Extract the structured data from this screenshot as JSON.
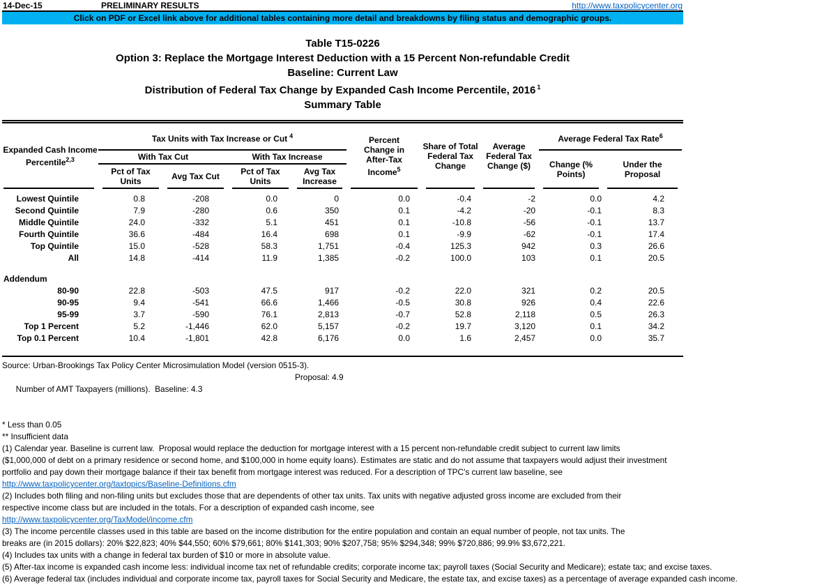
{
  "colors": {
    "banner": "#00B0F0",
    "link": "#0563C1",
    "text": "#000000"
  },
  "header": {
    "date": "14-Dec-15",
    "status": "PRELIMINARY RESULTS",
    "site_url": "http://www.taxpolicycenter.org",
    "banner_text": "Click on PDF or Excel link above for additional tables containing more detail and breakdowns by filing status and demographic groups."
  },
  "title": {
    "table_id": "Table T15-0226",
    "option": "Option 3: Replace the Mortgage Interest Deduction with a 15 Percent Non-refundable Credit",
    "baseline": "Baseline: Current Law",
    "distribution": "Distribution of Federal Tax Change by Expanded Cash Income Percentile, 2016",
    "distribution_sup": "1",
    "summary": "Summary Table"
  },
  "table": {
    "stub": {
      "line1": "Expanded Cash Income",
      "line2": "Percentile",
      "sup": "2,3"
    },
    "group_tax_units": {
      "label": "Tax Units with Tax Increase or Cut",
      "sup": "4"
    },
    "group_with_cut": "With Tax Cut",
    "group_with_increase": "With Tax Increase",
    "col_pct_units_cut": "Pct of Tax\nUnits",
    "col_avg_cut": "Avg Tax Cut",
    "col_pct_units_inc": "Pct of Tax\nUnits",
    "col_avg_inc": "Avg Tax\nIncrease",
    "col_pct_change": {
      "text": "Percent\nChange in\nAfter-Tax\nIncome",
      "sup": "5"
    },
    "col_share": "Share of Total\nFederal Tax\nChange",
    "col_avg_change": "Average\nFederal Tax\nChange ($)",
    "group_avg_rate": {
      "label": "Average Federal Tax Rate",
      "sup": "6"
    },
    "col_rate_change": "Change (%\nPoints)",
    "col_rate_proposal": "Under the\nProposal",
    "main_rows": [
      {
        "label": "Lowest Quintile",
        "values": [
          "0.8",
          "-208",
          "0.0",
          "0",
          "0.0",
          "-0.4",
          "-2",
          "0.0",
          "4.2"
        ]
      },
      {
        "label": "Second Quintile",
        "values": [
          "7.9",
          "-280",
          "0.6",
          "350",
          "0.1",
          "-4.2",
          "-20",
          "-0.1",
          "8.3"
        ]
      },
      {
        "label": "Middle Quintile",
        "values": [
          "24.0",
          "-332",
          "5.1",
          "451",
          "0.1",
          "-10.8",
          "-56",
          "-0.1",
          "13.7"
        ]
      },
      {
        "label": "Fourth Quintile",
        "values": [
          "36.6",
          "-484",
          "16.4",
          "698",
          "0.1",
          "-9.9",
          "-62",
          "-0.1",
          "17.4"
        ]
      },
      {
        "label": "Top Quintile",
        "values": [
          "15.0",
          "-528",
          "58.3",
          "1,751",
          "-0.4",
          "125.3",
          "942",
          "0.3",
          "26.6"
        ]
      },
      {
        "label": "All",
        "values": [
          "14.8",
          "-414",
          "11.9",
          "1,385",
          "-0.2",
          "100.0",
          "103",
          "0.1",
          "20.5"
        ]
      }
    ],
    "addendum_label": "Addendum",
    "addendum_rows": [
      {
        "label": "80-90",
        "values": [
          "22.8",
          "-503",
          "47.5",
          "917",
          "-0.2",
          "22.0",
          "321",
          "0.2",
          "20.5"
        ]
      },
      {
        "label": "90-95",
        "values": [
          "9.4",
          "-541",
          "66.6",
          "1,466",
          "-0.5",
          "30.8",
          "926",
          "0.4",
          "22.6"
        ]
      },
      {
        "label": "95-99",
        "values": [
          "3.7",
          "-590",
          "76.1",
          "2,813",
          "-0.7",
          "52.8",
          "2,118",
          "0.5",
          "26.3"
        ]
      },
      {
        "label": "Top 1 Percent",
        "values": [
          "5.2",
          "-1,446",
          "62.0",
          "5,157",
          "-0.2",
          "19.7",
          "3,120",
          "0.1",
          "34.2"
        ]
      },
      {
        "label": "Top 0.1 Percent",
        "values": [
          "10.4",
          "-1,801",
          "42.8",
          "6,176",
          "0.0",
          "1.6",
          "2,457",
          "0.0",
          "35.7"
        ]
      }
    ]
  },
  "footer": {
    "source": "Source: Urban-Brookings Tax Policy Center Microsimulation Model (version 0515-3).",
    "amt_label": "Number of AMT Taxpayers (millions).  Baseline: 4.3",
    "amt_proposal": "Proposal: 4.9",
    "note_star": "* Less than 0.05",
    "note_dstar": "** Insufficient data",
    "footnotes": [
      {
        "kind": "text",
        "text": "(1) Calendar year. Baseline is current law.  Proposal would replace the deduction for mortgage interest with a 15 percent non-refundable credit subject to current law limits\n($1,000,000 of debt on a primary residence or second home, and $100,000 in home equity loans). Estimates are static and do not assume that taxpayers would adjust their investment\nportfolio and pay down their mortgage balance if their tax benefit from mortgage interest was reduced. For a description of TPC's current law baseline, see"
      },
      {
        "kind": "link",
        "text": "http://www.taxpolicycenter.org/taxtopics/Baseline-Definitions.cfm"
      },
      {
        "kind": "text",
        "text": "(2) Includes both filing and non-filing units but excludes those that are dependents of other tax units. Tax units with negative adjusted gross income are excluded from their\nrespective income class but are included in the totals. For a description of expanded cash income, see"
      },
      {
        "kind": "link",
        "text": "http://www.taxpolicycenter.org/TaxModel/income.cfm"
      },
      {
        "kind": "text",
        "text": "(3) The income percentile classes used in this table are based on the income distribution for the entire population and contain an equal number of people, not tax units. The\nbreaks are (in 2015 dollars): 20% $22,823; 40% $44,550; 60% $79,661; 80% $141,303; 90% $207,758; 95% $294,348; 99% $720,886; 99.9% $3,672,221."
      },
      {
        "kind": "text",
        "text": "(4) Includes tax units with a change in federal tax burden of $10 or more in absolute value."
      },
      {
        "kind": "text",
        "text": "(5) After-tax income is expanded cash income less: individual income tax net of refundable credits; corporate income tax; payroll taxes (Social Security and Medicare); estate tax; and excise taxes."
      },
      {
        "kind": "text",
        "text": "(6) Average federal tax (includes individual and corporate income tax, payroll taxes for Social Security and Medicare, the estate tax, and excise taxes) as a percentage of average expanded cash income."
      }
    ]
  }
}
